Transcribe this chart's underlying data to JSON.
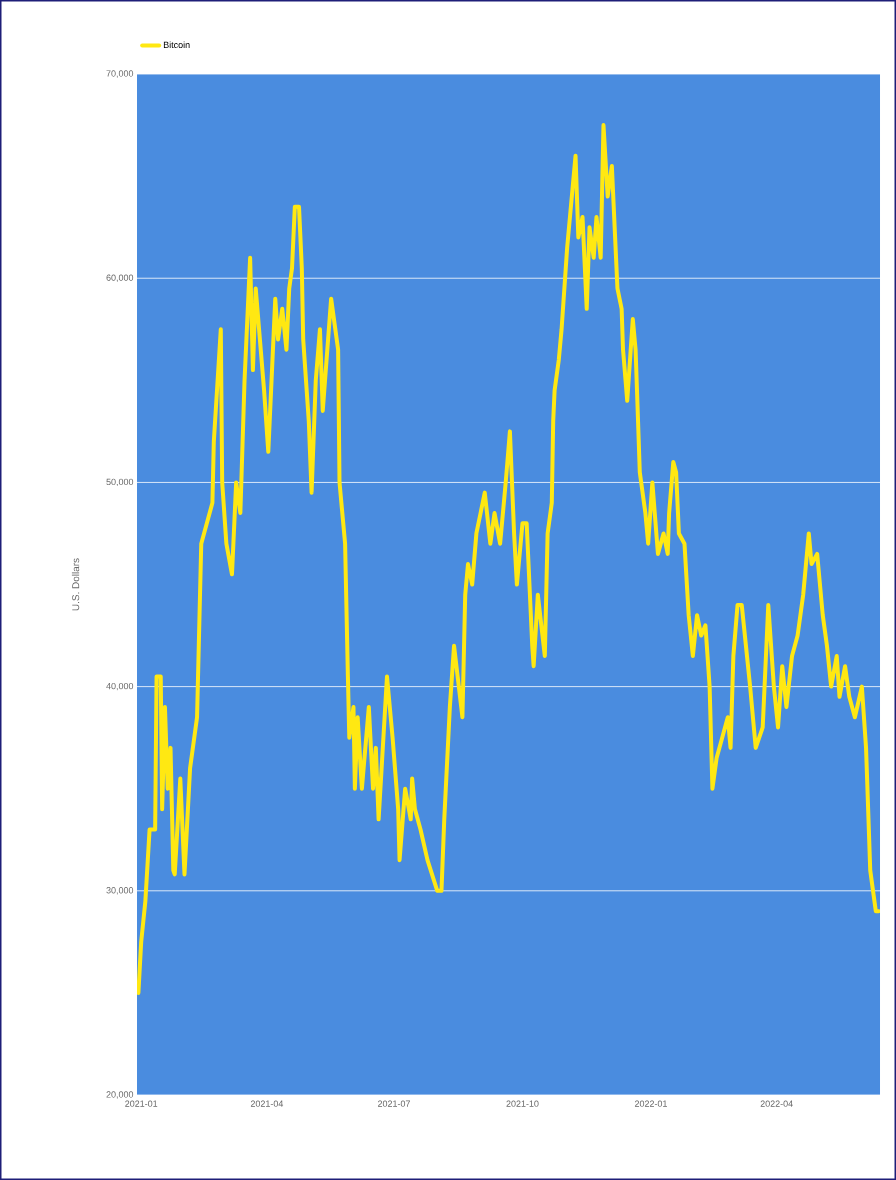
{
  "chart_data": {
    "type": "line",
    "ylabel": "U.S. Dollars",
    "legend": "top left",
    "grid": "y",
    "line_style": "solid",
    "xlim": [
      "2020-12-29",
      "2022-06-14"
    ],
    "xticks": [
      "2021-01",
      "2021-04",
      "2021-07",
      "2021-10",
      "2022-01",
      "2022-04"
    ],
    "ylim": [
      20000,
      70000
    ],
    "yticks": [
      {
        "value": 20000,
        "label": "20,000"
      },
      {
        "value": 30000,
        "label": "30,000"
      },
      {
        "value": 40000,
        "label": "40,000"
      },
      {
        "value": 50000,
        "label": "50,000"
      },
      {
        "value": 60000,
        "label": "60,000"
      },
      {
        "value": 70000,
        "label": "70,000"
      }
    ],
    "x": [
      "2020-12-30",
      "2021-01-01",
      "2021-01-04",
      "2021-01-07",
      "2021-01-11",
      "2021-01-12",
      "2021-01-15",
      "2021-01-16",
      "2021-01-18",
      "2021-01-20",
      "2021-01-22",
      "2021-01-24",
      "2021-01-25",
      "2021-01-29",
      "2021-02-01",
      "2021-02-05",
      "2021-02-10",
      "2021-02-13",
      "2021-02-17",
      "2021-02-21",
      "2021-02-22",
      "2021-02-27",
      "2021-02-28",
      "2021-03-03",
      "2021-03-07",
      "2021-03-10",
      "2021-03-13",
      "2021-03-16",
      "2021-03-20",
      "2021-03-22",
      "2021-03-24",
      "2021-03-27",
      "2021-03-30",
      "2021-04-02",
      "2021-04-05",
      "2021-04-07",
      "2021-04-09",
      "2021-04-12",
      "2021-04-15",
      "2021-04-17",
      "2021-04-19",
      "2021-04-21",
      "2021-04-24",
      "2021-04-26",
      "2021-04-27",
      "2021-05-01",
      "2021-05-03",
      "2021-05-06",
      "2021-05-09",
      "2021-05-11",
      "2021-05-17",
      "2021-05-22",
      "2021-05-23",
      "2021-05-27",
      "2021-05-29",
      "2021-05-30",
      "2021-06-02",
      "2021-06-03",
      "2021-06-05",
      "2021-06-08",
      "2021-06-13",
      "2021-06-16",
      "2021-06-18",
      "2021-06-20",
      "2021-06-26",
      "2021-06-30",
      "2021-07-04",
      "2021-07-05",
      "2021-07-09",
      "2021-07-13",
      "2021-07-14",
      "2021-07-16",
      "2021-07-20",
      "2021-07-25",
      "2021-08-01",
      "2021-08-04",
      "2021-08-06",
      "2021-08-10",
      "2021-08-13",
      "2021-08-19",
      "2021-08-21",
      "2021-08-23",
      "2021-08-26",
      "2021-08-29",
      "2021-09-01",
      "2021-09-04",
      "2021-09-08",
      "2021-09-11",
      "2021-09-15",
      "2021-09-19",
      "2021-09-22",
      "2021-09-25",
      "2021-09-27",
      "2021-10-01",
      "2021-10-04",
      "2021-10-08",
      "2021-10-09",
      "2021-10-12",
      "2021-10-17",
      "2021-10-19",
      "2021-10-22",
      "2021-10-23",
      "2021-10-24",
      "2021-10-27",
      "2021-10-29",
      "2021-11-02",
      "2021-11-08",
      "2021-11-10",
      "2021-11-13",
      "2021-11-16",
      "2021-11-18",
      "2021-11-21",
      "2021-11-23",
      "2021-11-26",
      "2021-11-28",
      "2021-12-01",
      "2021-12-04",
      "2021-12-08",
      "2021-12-11",
      "2021-12-12",
      "2021-12-15",
      "2021-12-19",
      "2021-12-21",
      "2021-12-24",
      "2021-12-28",
      "2021-12-30",
      "2022-01-02",
      "2022-01-06",
      "2022-01-10",
      "2022-01-13",
      "2022-01-14",
      "2022-01-17",
      "2022-01-19",
      "2022-01-21",
      "2022-01-25",
      "2022-01-28",
      "2022-01-31",
      "2022-02-03",
      "2022-02-06",
      "2022-02-09",
      "2022-02-12",
      "2022-02-14",
      "2022-02-17",
      "2022-02-21",
      "2022-02-25",
      "2022-02-27",
      "2022-03-01",
      "2022-03-04",
      "2022-03-07",
      "2022-03-10",
      "2022-03-13",
      "2022-03-17",
      "2022-03-22",
      "2022-03-26",
      "2022-03-30",
      "2022-04-02",
      "2022-04-05",
      "2022-04-08",
      "2022-04-12",
      "2022-04-16",
      "2022-04-20",
      "2022-04-24",
      "2022-04-26",
      "2022-04-30",
      "2022-05-04",
      "2022-05-07",
      "2022-05-10",
      "2022-05-14",
      "2022-05-16",
      "2022-05-20",
      "2022-05-23",
      "2022-05-27",
      "2022-06-01",
      "2022-06-04",
      "2022-06-07",
      "2022-06-11",
      "2022-06-13"
    ],
    "series": [
      {
        "name": "Bitcoin",
        "color": "#ffe812",
        "values": [
          25000,
          27500,
          29500,
          33000,
          33000,
          40500,
          40500,
          34000,
          39000,
          35000,
          37000,
          31000,
          30800,
          35500,
          30800,
          36000,
          38500,
          47000,
          48000,
          49000,
          52000,
          57500,
          50000,
          47000,
          45500,
          50000,
          48500,
          55000,
          61000,
          55500,
          59500,
          57000,
          54500,
          51500,
          56000,
          59000,
          57000,
          58500,
          56500,
          59500,
          60500,
          63500,
          63500,
          60500,
          57000,
          53000,
          49500,
          55000,
          57500,
          53500,
          59000,
          56500,
          50000,
          47000,
          40500,
          37500,
          39000,
          35000,
          38500,
          35000,
          39000,
          35000,
          37000,
          33500,
          40500,
          37500,
          34000,
          31500,
          35000,
          33500,
          35500,
          34000,
          33000,
          31500,
          30000,
          30000,
          33500,
          39000,
          42000,
          38500,
          44500,
          46000,
          45000,
          47500,
          48500,
          49500,
          47000,
          48500,
          47000,
          50000,
          52500,
          47500,
          45000,
          48000,
          48000,
          42000,
          41000,
          44500,
          41500,
          47500,
          49000,
          53000,
          54500,
          56000,
          57500,
          61500,
          66000,
          62000,
          63000,
          58500,
          62500,
          61000,
          63000,
          61000,
          67500,
          64000,
          65500,
          59500,
          58500,
          56500,
          54000,
          58000,
          56500,
          50500,
          48500,
          47000,
          50000,
          46500,
          47500,
          46500,
          48500,
          51000,
          50500,
          47500,
          47000,
          43500,
          41500,
          43500,
          42500,
          43000,
          40000,
          35000,
          36500,
          37500,
          38500,
          37000,
          41500,
          44000,
          44000,
          42000,
          40000,
          37000,
          38000,
          44000,
          40000,
          38000,
          41000,
          39000,
          41500,
          42500,
          44500,
          47500,
          46000,
          46500,
          43500,
          42000,
          40000,
          41500,
          39500,
          41000,
          39500,
          38500,
          40000,
          37000,
          31000,
          29000,
          29000
        ]
      }
    ]
  }
}
